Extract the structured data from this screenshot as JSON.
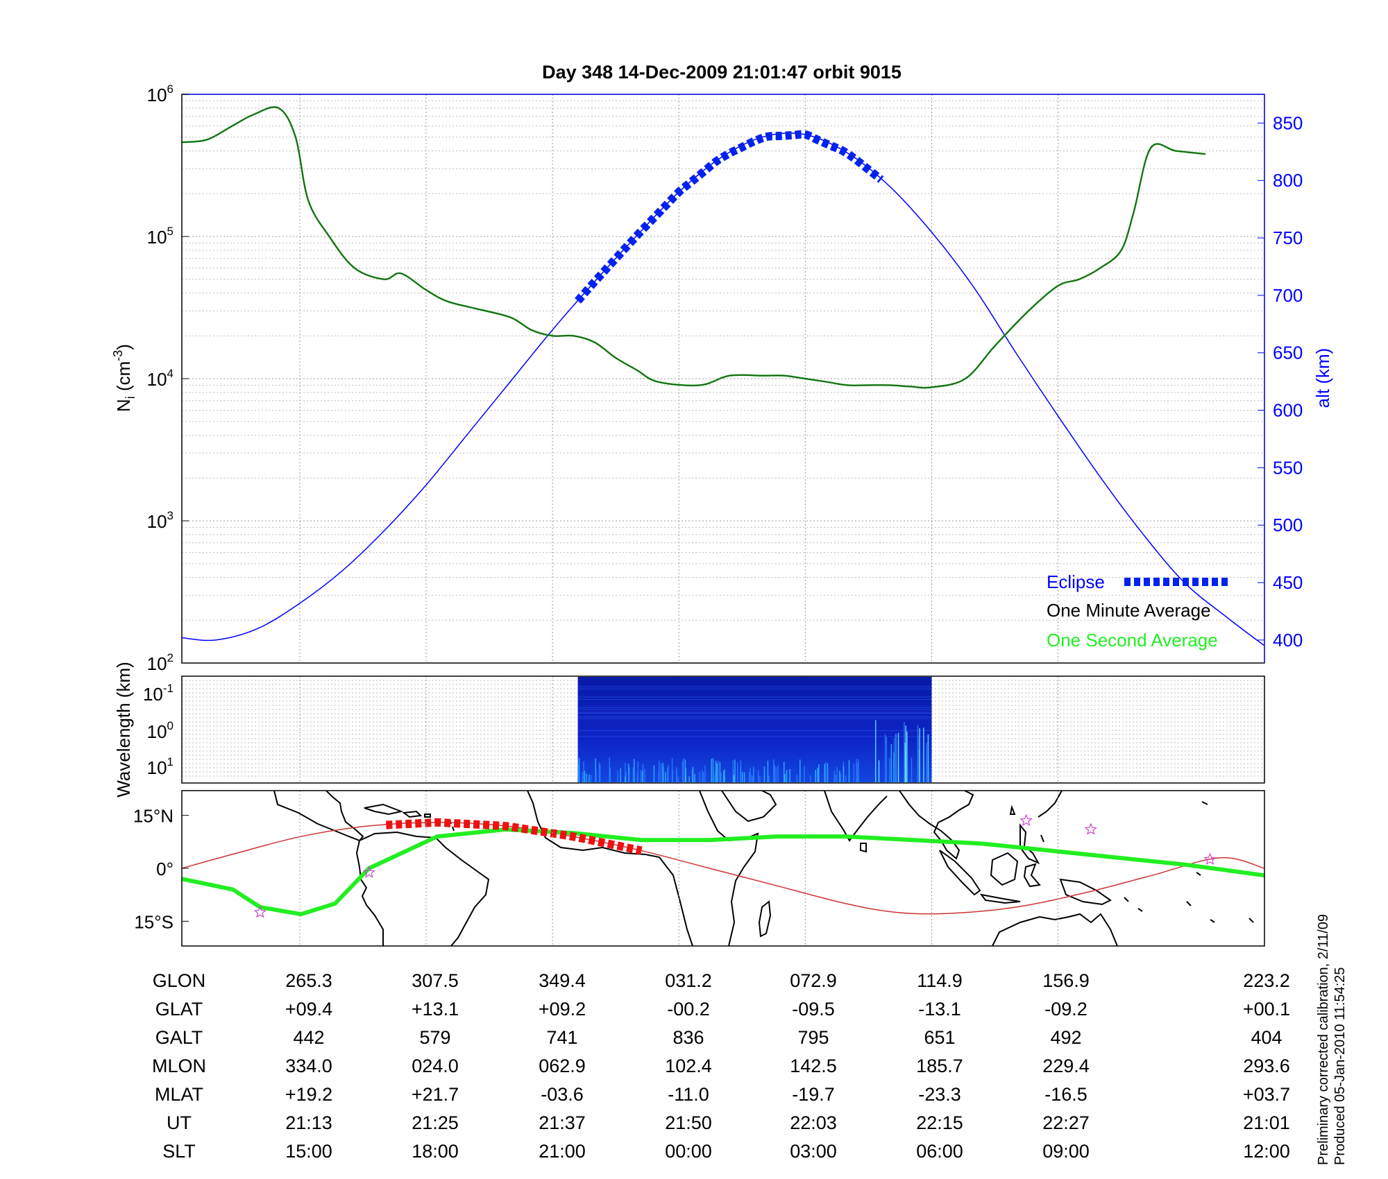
{
  "header": {
    "title": "Day 348  14-Dec-2009 21:01:47   orbit 9015"
  },
  "colors": {
    "density": "#1a9a1a",
    "density_fine": "#22ee22",
    "altitude": "#0000ff",
    "eclipse": "#0022ee",
    "track_eclipse": "#ee1111",
    "ground_track": "#cc3333",
    "coast": "#000000",
    "stars": "#cc44cc"
  },
  "density_panel": {
    "ylabel_left": "N_i (cm^-3)",
    "ylabel_right": "alt (km)",
    "yticks_left": [
      "10^2",
      "10^3",
      "10^4",
      "10^5",
      "10^6"
    ],
    "yticks_right": [
      "400",
      "450",
      "500",
      "550",
      "600",
      "650",
      "700",
      "750",
      "800",
      "850"
    ],
    "legend": {
      "eclipse": "Eclipse",
      "minute": "One Minute Average",
      "second": "One Second Average"
    }
  },
  "spectrogram_panel": {
    "ylabel": "Wavelength (km)",
    "yticks": [
      "10^-1",
      "10^0",
      "10^1"
    ]
  },
  "map_panel": {
    "yticks": [
      "15°N",
      "0°",
      "15°S"
    ]
  },
  "ephemeris_table": {
    "rows": [
      {
        "label": "GLON",
        "values": [
          "265.3",
          "307.5",
          "349.4",
          "031.2",
          "072.9",
          "114.9",
          "156.9",
          "223.2"
        ]
      },
      {
        "label": "GLAT",
        "values": [
          "+09.4",
          "+13.1",
          "+09.2",
          "-00.2",
          "-09.5",
          "-13.1",
          "-09.2",
          "+00.1"
        ]
      },
      {
        "label": "GALT",
        "values": [
          "442",
          "579",
          "741",
          "836",
          "795",
          "651",
          "492",
          "404"
        ]
      },
      {
        "label": "MLON",
        "values": [
          "334.0",
          "024.0",
          "062.9",
          "102.4",
          "142.5",
          "185.7",
          "229.4",
          "293.6"
        ]
      },
      {
        "label": "MLAT",
        "values": [
          "+19.2",
          "+21.7",
          "-03.6",
          "-11.0",
          "-19.7",
          "-23.3",
          "-16.5",
          "+03.7"
        ]
      },
      {
        "label": "UT",
        "values": [
          "21:13",
          "21:25",
          "21:37",
          "21:50",
          "22:03",
          "22:15",
          "22:27",
          "21:01"
        ]
      },
      {
        "label": "SLT",
        "values": [
          "15:00",
          "18:00",
          "21:00",
          "00:00",
          "03:00",
          "06:00",
          "09:00",
          "12:00"
        ]
      }
    ]
  },
  "footer": {
    "note_line1": "Preliminary corrected calibration, 2/11/09",
    "note_line2": "Produced 05-Jan-2010 11:54:25"
  },
  "chart_data": [
    {
      "type": "line",
      "title": "Day 348  14-Dec-2009 21:01:47   orbit 9015",
      "xlabel": "SLT",
      "x_ticks": [
        "15:00",
        "18:00",
        "21:00",
        "00:00",
        "03:00",
        "06:00",
        "09:00",
        "12:00"
      ],
      "xlim_hours_slt": [
        12.2,
        37.9
      ],
      "y_left": {
        "label": "N_i (cm^-3)",
        "scale": "log",
        "ylim": [
          100,
          1000000
        ]
      },
      "y_right": {
        "label": "alt (km)",
        "scale": "linear",
        "ylim": [
          380,
          875
        ]
      },
      "series": [
        {
          "name": "One Second Average",
          "axis": "left",
          "x": [
            12.2,
            12.8,
            13.4,
            13.9,
            14.5,
            14.9,
            15.2,
            15.7,
            16.3,
            17.0,
            17.4,
            18.0,
            18.5,
            19.2,
            20.0,
            20.5,
            21.0,
            21.5,
            22.0,
            22.5,
            23.0,
            23.5,
            24.5,
            25.2,
            26.0,
            26.5,
            27.0,
            27.5,
            28.0,
            28.5,
            29.0,
            29.5,
            30.0,
            30.8,
            31.5,
            32.3,
            33.0,
            33.5,
            34.0,
            34.5,
            34.8,
            35.2,
            35.8,
            36.5
          ],
          "values": [
            460000,
            480000,
            600000,
            720000,
            800000,
            500000,
            180000,
            100000,
            60000,
            50000,
            55000,
            42000,
            35000,
            31000,
            27000,
            22000,
            20000,
            20000,
            18000,
            14000,
            11500,
            9500,
            9000,
            10500,
            10500,
            10500,
            10000,
            9500,
            9000,
            9000,
            9000,
            8800,
            8700,
            10000,
            17000,
            30000,
            45000,
            50000,
            60000,
            80000,
            150000,
            420000,
            400000,
            380000
          ]
        },
        {
          "name": "One Minute Average",
          "axis": "left",
          "note": "overlaps the one second average"
        },
        {
          "name": "alt",
          "axis": "right",
          "x": [
            12.2,
            13.0,
            14.0,
            15.0,
            16.0,
            17.0,
            18.0,
            19.0,
            20.0,
            21.0,
            22.0,
            23.0,
            24.0,
            25.0,
            26.0,
            27.0,
            28.0,
            29.0,
            30.0,
            31.0,
            32.0,
            33.0,
            34.0,
            35.0,
            36.0,
            37.0,
            37.9
          ],
          "values": [
            402,
            400,
            410,
            432,
            460,
            495,
            535,
            580,
            625,
            670,
            712,
            752,
            790,
            820,
            838,
            840,
            824,
            795,
            755,
            707,
            650,
            595,
            542,
            493,
            450,
            420,
            395
          ]
        },
        {
          "name": "Eclipse",
          "axis": "right",
          "x_range": [
            21.6,
            28.8
          ],
          "style": "thick dashed, overlays altitude curve"
        }
      ],
      "legend_position": "bottom-right",
      "grid": true
    },
    {
      "type": "heatmap",
      "ylabel": "Wavelength (km)",
      "y_ticks": [
        "10^-1",
        "10^0",
        "10^1"
      ],
      "x_range_slt": [
        21.6,
        30.0
      ],
      "colormap": "jet (dark blue background, cyan/yellow bursts at long wavelength)"
    },
    {
      "type": "line",
      "description_ticks": [
        "15°N",
        "0°",
        "15°S"
      ],
      "ylim_deg": [
        -22,
        22
      ],
      "series": [
        {
          "name": "ground track",
          "axis": "geo",
          "x": [
            -95,
            -80,
            -60,
            -40,
            -20,
            0,
            20,
            40,
            60,
            80,
            100,
            115,
            130,
            150,
            170,
            190,
            210,
            223
          ],
          "values": [
            0,
            4,
            9,
            12,
            13,
            12,
            9,
            5,
            0,
            -5,
            -10,
            -12.5,
            -12.8,
            -11,
            -7,
            -2,
            3,
            0
          ]
        },
        {
          "name": "magnetic equator",
          "axis": "geo",
          "x": [
            -95,
            -80,
            -72,
            -60,
            -50,
            -40,
            -20,
            0,
            20,
            40,
            60,
            80,
            100,
            120,
            140,
            160,
            180,
            200,
            223
          ],
          "values": [
            -3,
            -6,
            -11,
            -13,
            -10,
            0,
            9,
            11,
            10,
            8,
            8,
            9,
            9,
            8,
            7,
            5,
            3,
            1,
            -2
          ]
        },
        {
          "name": "eclipse on ground track",
          "x_range_deg": [
            -35,
            40
          ]
        }
      ]
    }
  ]
}
